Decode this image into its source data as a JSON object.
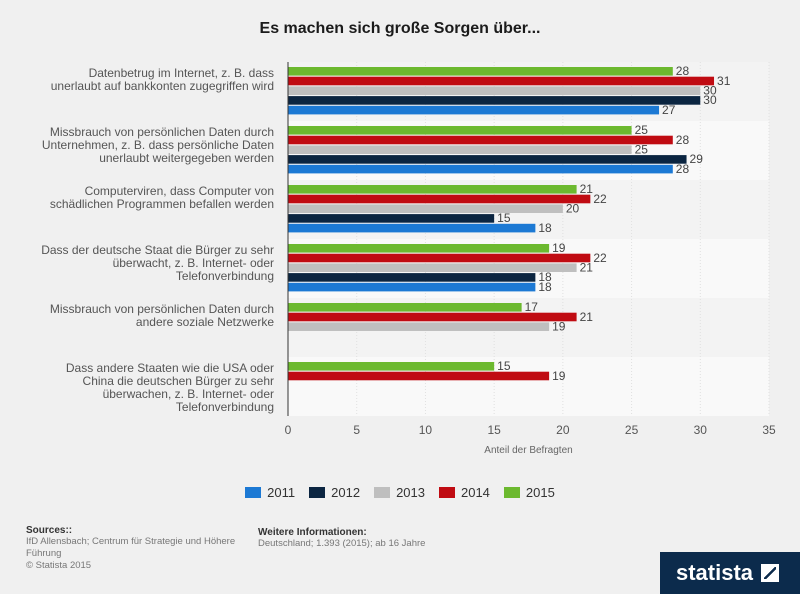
{
  "chart_data": {
    "type": "bar",
    "orientation": "horizontal",
    "title": "Es machen sich große Sorgen über...",
    "xlabel": "Anteil der Befragten",
    "ylabel": "",
    "xlim": [
      0,
      35
    ],
    "xticks": [
      "0",
      "5",
      "10",
      "15",
      "20",
      "25",
      "30",
      "35"
    ],
    "categories": [
      "Datenbetrug im Internet, z. B. dass unerlaubt auf bankkonten zugegriffen wird",
      "Missbrauch von persönlichen Daten durch Unternehmen, z. B. dass persönliche Daten unerlaubt weitergegeben werden",
      "Computerviren, dass Computer von schädlichen Programmen befallen werden",
      "Dass der deutsche Staat die Bürger zu sehr überwacht, z. B. Internet- oder Telefonverbindung",
      "Missbrauch von persönlichen Daten durch andere soziale Netzwerke",
      "Dass andere Staaten wie die USA oder China die deutschen Bürger zu sehr überwachen, z. B. Internet- oder Telefonverbindung"
    ],
    "category_lines": [
      [
        "Datenbetrug im Internet, z. B. dass",
        "unerlaubt auf bankkonten zugegriffen wird"
      ],
      [
        "Missbrauch von persönlichen Daten durch",
        "Unternehmen, z. B. dass persönliche Daten",
        "unerlaubt weitergegeben werden"
      ],
      [
        "Computerviren, dass Computer von",
        "schädlichen Programmen befallen werden"
      ],
      [
        "Dass der deutsche Staat die Bürger zu sehr",
        "überwacht, z. B. Internet- oder",
        "Telefonverbindung"
      ],
      [
        "Missbrauch von persönlichen Daten durch",
        "andere soziale Netzwerke"
      ],
      [
        "Dass andere Staaten wie die USA oder",
        "China die deutschen Bürger zu sehr",
        "überwachen, z. B. Internet- oder",
        "Telefonverbindung"
      ]
    ],
    "series": [
      {
        "name": "2015",
        "color": "#6cb92f",
        "values": [
          28,
          25,
          21,
          19,
          17,
          15
        ]
      },
      {
        "name": "2014",
        "color": "#c00b12",
        "values": [
          31,
          28,
          22,
          22,
          21,
          19
        ]
      },
      {
        "name": "2013",
        "color": "#bfbfbf",
        "values": [
          30,
          25,
          20,
          21,
          19,
          null
        ]
      },
      {
        "name": "2012",
        "color": "#0b2541",
        "values": [
          30,
          29,
          15,
          18,
          null,
          null
        ]
      },
      {
        "name": "2011",
        "color": "#1c79d4",
        "values": [
          27,
          28,
          18,
          18,
          null,
          null
        ]
      }
    ],
    "legend_order": [
      "2011",
      "2012",
      "2013",
      "2014",
      "2015"
    ],
    "legend_position": "bottom"
  },
  "footer": {
    "sources_heading": "Sources::",
    "sources_text": "IfD Allensbach; Centrum für Strategie und Höhere Führung",
    "copyright": "© Statista 2015",
    "info_heading": "Weitere Informationen:",
    "info_text": "Deutschland; 1.393 (2015); ab 16 Jahre",
    "logo_text": "statista"
  }
}
